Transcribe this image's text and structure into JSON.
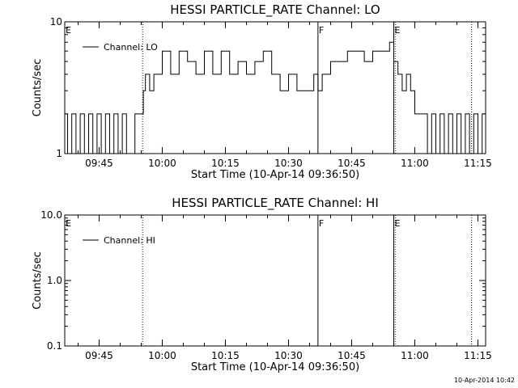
{
  "footer": {
    "timestamp": "10-Apr-2014 10:42"
  },
  "colors": {
    "background": "#ffffff",
    "ink": "#000000"
  },
  "chart_data": [
    {
      "type": "line",
      "title": "HESSI PARTICLE_RATE Channel: LO",
      "xlabel": "Start Time (10-Apr-14 09:36:50)",
      "ylabel": "Counts/sec",
      "y_scale": "log",
      "ylim": [
        1,
        10
      ],
      "y_ticks": [
        {
          "value": 1,
          "label": "1"
        },
        {
          "value": 10,
          "label": "10"
        }
      ],
      "xlim": [
        "09:36:50",
        "11:16:50"
      ],
      "x_ticks": [
        "09:45",
        "10:00",
        "10:15",
        "10:30",
        "10:45",
        "11:00",
        "11:15"
      ],
      "legend": {
        "entries": [
          "Channel: LO"
        ],
        "placement": "top-left"
      },
      "grid": false,
      "event_markers": [
        {
          "time": "09:36:50",
          "label": "E",
          "style": "solid"
        },
        {
          "time": "09:55:20",
          "label": "",
          "style": "dotted"
        },
        {
          "time": "10:37:00",
          "label": "F",
          "style": "solid"
        },
        {
          "time": "10:55:00",
          "label": "E",
          "style": "solid"
        },
        {
          "time": "10:55:20",
          "label": "",
          "style": "dotted"
        },
        {
          "time": "11:13:30",
          "label": "",
          "style": "dotted"
        }
      ],
      "series": [
        {
          "name": "Channel: LO",
          "x": [
            "09:36:50",
            "09:37:30",
            "09:38:30",
            "09:39:30",
            "09:40:30",
            "09:41:30",
            "09:42:30",
            "09:43:30",
            "09:44:30",
            "09:45:30",
            "09:46:30",
            "09:47:30",
            "09:48:30",
            "09:49:30",
            "09:50:30",
            "09:51:30",
            "09:52:30",
            "09:53:30",
            "09:54:30",
            "09:55:30",
            "09:56:00",
            "09:57:00",
            "09:58:00",
            "09:59:00",
            "10:00:00",
            "10:02:00",
            "10:04:00",
            "10:06:00",
            "10:08:00",
            "10:10:00",
            "10:12:00",
            "10:14:00",
            "10:16:00",
            "10:18:00",
            "10:20:00",
            "10:22:00",
            "10:24:00",
            "10:26:00",
            "10:28:00",
            "10:30:00",
            "10:32:00",
            "10:34:00",
            "10:36:00",
            "10:37:00",
            "10:38:00",
            "10:40:00",
            "10:42:00",
            "10:44:00",
            "10:46:00",
            "10:48:00",
            "10:50:00",
            "10:52:00",
            "10:54:00",
            "10:55:00",
            "10:56:00",
            "10:57:00",
            "10:58:00",
            "10:59:00",
            "11:00:00",
            "11:01:00",
            "11:02:00",
            "11:03:00",
            "11:04:00",
            "11:05:00",
            "11:06:00",
            "11:07:00",
            "11:08:00",
            "11:09:00",
            "11:10:00",
            "11:11:00",
            "11:12:00",
            "11:13:00",
            "11:14:00",
            "11:15:00",
            "11:16:00",
            "11:16:50"
          ],
          "y": [
            2,
            1,
            2,
            1,
            2,
            1,
            2,
            1,
            2,
            1,
            2,
            1,
            2,
            1,
            2,
            1,
            1,
            2,
            2,
            3,
            4,
            3,
            4,
            4,
            6,
            4,
            6,
            5,
            4,
            6,
            4,
            6,
            4,
            5,
            4,
            5,
            6,
            4,
            3,
            4,
            3,
            3,
            4,
            3,
            4,
            5,
            5,
            6,
            6,
            5,
            6,
            6,
            7,
            5,
            4,
            3,
            4,
            3,
            2,
            2,
            2,
            1,
            2,
            1,
            2,
            1,
            2,
            1,
            2,
            1,
            2,
            1,
            2,
            1,
            2,
            1
          ]
        }
      ]
    },
    {
      "type": "line",
      "title": "HESSI PARTICLE_RATE Channel: HI",
      "xlabel": "Start Time (10-Apr-14 09:36:50)",
      "ylabel": "Counts/sec",
      "y_scale": "log",
      "ylim": [
        0.1,
        10.0
      ],
      "y_ticks": [
        {
          "value": 0.1,
          "label": "0.1"
        },
        {
          "value": 1.0,
          "label": "1.0"
        },
        {
          "value": 10.0,
          "label": "10.0"
        }
      ],
      "xlim": [
        "09:36:50",
        "11:16:50"
      ],
      "x_ticks": [
        "09:45",
        "10:00",
        "10:15",
        "10:30",
        "10:45",
        "11:00",
        "11:15"
      ],
      "legend": {
        "entries": [
          "Channel: HI"
        ],
        "placement": "top-left"
      },
      "grid": false,
      "event_markers": [
        {
          "time": "09:36:50",
          "label": "E",
          "style": "solid"
        },
        {
          "time": "09:55:20",
          "label": "",
          "style": "dotted"
        },
        {
          "time": "10:37:00",
          "label": "F",
          "style": "solid"
        },
        {
          "time": "10:55:00",
          "label": "E",
          "style": "solid"
        },
        {
          "time": "10:55:20",
          "label": "",
          "style": "dotted"
        },
        {
          "time": "11:13:30",
          "label": "",
          "style": "dotted"
        }
      ],
      "series": [
        {
          "name": "Channel: HI",
          "x": [],
          "y": []
        }
      ]
    }
  ]
}
